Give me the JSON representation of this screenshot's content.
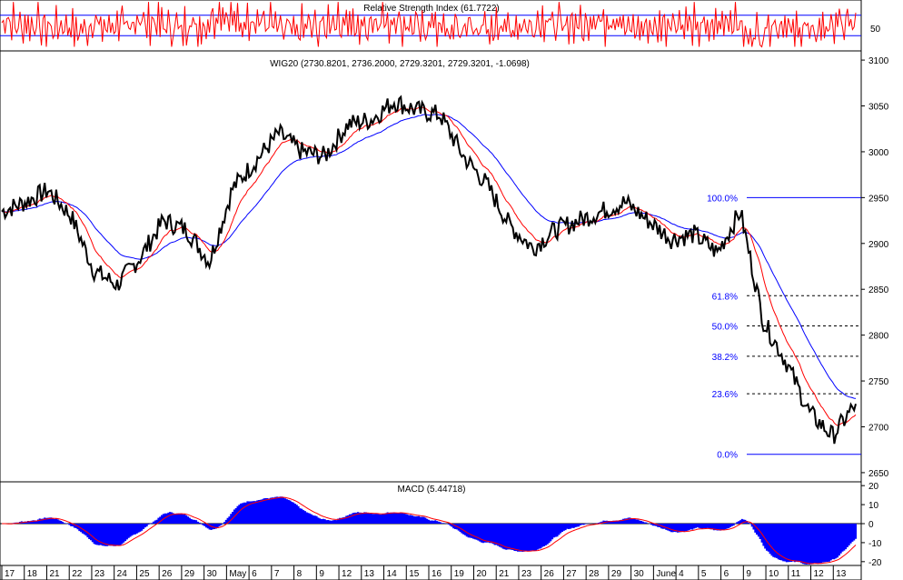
{
  "rsi": {
    "title": "Relative Strength Index (61.7722)",
    "upper_level": 70,
    "lower_level": 30,
    "tick_label": "50",
    "color": "#ff0000",
    "level_color": "#0000ff"
  },
  "price": {
    "title": "WIG20 (2730.8201, 2736.2000, 2729.3201, 2729.3201, -1.0698)",
    "ylim": [
      2640,
      3110
    ],
    "y_ticks": [
      "3100",
      "3050",
      "3000",
      "2950",
      "2900",
      "2850",
      "2800",
      "2750",
      "2700",
      "2650"
    ],
    "y_tick_values": [
      3100,
      3050,
      3000,
      2950,
      2900,
      2850,
      2800,
      2750,
      2700,
      2650
    ],
    "colors": {
      "price": "#000000",
      "ma_fast": "#ff0000",
      "ma_slow": "#0000ff"
    }
  },
  "fibonacci": {
    "levels": [
      {
        "label": "100.0%",
        "value": 2950
      },
      {
        "label": "61.8%",
        "value": 2843
      },
      {
        "label": "50.0%",
        "value": 2810
      },
      {
        "label": "38.2%",
        "value": 2777
      },
      {
        "label": "23.6%",
        "value": 2736
      },
      {
        "label": "0.0%",
        "value": 2670
      }
    ]
  },
  "macd": {
    "title": "MACD (5.44718)",
    "ylim": [
      -22,
      22
    ],
    "y_ticks": [
      "20",
      "10",
      "0",
      "-10",
      "-20"
    ],
    "y_tick_values": [
      20,
      10,
      0,
      -10,
      -20
    ],
    "colors": {
      "histogram": "#0000ff",
      "signal": "#ff0000"
    }
  },
  "x_axis": {
    "labels": [
      "17",
      "18",
      "21",
      "22",
      "23",
      "24",
      "25",
      "26",
      "29",
      "30",
      "May",
      "6",
      "7",
      "8",
      "9",
      "12",
      "13",
      "14",
      "15",
      "16",
      "19",
      "20",
      "21",
      "23",
      "26",
      "27",
      "28",
      "29",
      "30",
      "June",
      "4",
      "5",
      "6",
      "9",
      "10",
      "11",
      "12",
      "13"
    ]
  },
  "chart_data": {
    "type": "line",
    "title": "WIG20 (2730.8201, 2736.2000, 2729.3201, 2729.3201, -1.0698)",
    "categories": [
      "17",
      "18",
      "21",
      "22",
      "23",
      "24",
      "25",
      "26",
      "29",
      "30",
      "May",
      "6",
      "7",
      "8",
      "9",
      "12",
      "13",
      "14",
      "15",
      "16",
      "19",
      "20",
      "21",
      "23",
      "26",
      "27",
      "28",
      "29",
      "30",
      "June",
      "4",
      "5",
      "6",
      "9",
      "10",
      "11",
      "12",
      "13"
    ],
    "ylim": [
      2640,
      3110
    ],
    "series": [
      {
        "name": "WIG20",
        "values": [
          2935,
          2945,
          2958,
          2930,
          2870,
          2855,
          2885,
          2925,
          2915,
          2880,
          2960,
          2990,
          3020,
          3000,
          2995,
          3030,
          3035,
          3055,
          3045,
          3040,
          2995,
          2965,
          2920,
          2895,
          2915,
          2925,
          2935,
          2945,
          2925,
          2905,
          2910,
          2890,
          2935,
          2815,
          2770,
          2715,
          2690,
          2725
        ]
      }
    ],
    "fibonacci": [
      {
        "label": "100.0%",
        "value": 2950
      },
      {
        "label": "61.8%",
        "value": 2843
      },
      {
        "label": "50.0%",
        "value": 2810
      },
      {
        "label": "38.2%",
        "value": 2777
      },
      {
        "label": "23.6%",
        "value": 2736
      },
      {
        "label": "0.0%",
        "value": 2670
      }
    ],
    "panels": [
      "Relative Strength Index (61.7722)",
      "WIG20",
      "MACD (5.44718)"
    ],
    "grid": false
  }
}
